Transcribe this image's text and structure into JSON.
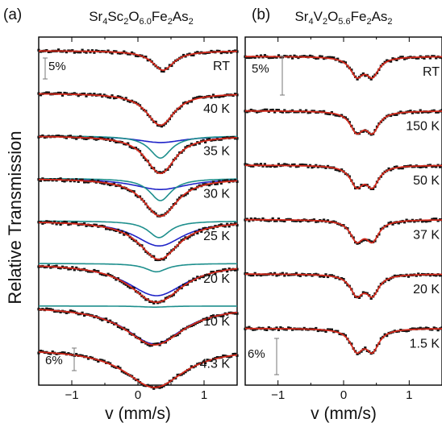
{
  "ylabel": "Relative Transmission",
  "colors": {
    "data": "#111111",
    "fit": "#d42a1c",
    "blue": "#1f23c8",
    "teal": "#1e8f8d"
  },
  "chart_data": [
    {
      "type": "line",
      "panel_label": "(a)",
      "title_parts": [
        "Sr",
        "4",
        "Sc",
        "2",
        "O",
        "6.0",
        "Fe",
        "2",
        "As",
        "2"
      ],
      "xlabel": "v (mm/s)",
      "xlim": [
        -1.5,
        1.5
      ],
      "xticks": [
        -1,
        0,
        1
      ],
      "scale_bars": [
        {
          "label": "5%",
          "position": "top-left"
        },
        {
          "label": "6%",
          "position": "bottom-left"
        }
      ],
      "spectra": [
        {
          "label": "RT",
          "center": 0.38,
          "depth": 0.035,
          "hwhm": 0.2,
          "split": 0,
          "components": []
        },
        {
          "label": "40 K",
          "center": 0.34,
          "depth": 0.06,
          "hwhm": 0.24,
          "split": 0.1,
          "components": []
        },
        {
          "label": "35 K",
          "center": 0.34,
          "depth": 0.07,
          "hwhm": 0.26,
          "split": 0.1,
          "components": [
            {
              "color": "blue",
              "depth": 0.012,
              "hwhm": 0.45
            },
            {
              "color": "teal",
              "depth": 0.04,
              "hwhm": 0.2
            }
          ]
        },
        {
          "label": "30 K",
          "center": 0.34,
          "depth": 0.07,
          "hwhm": 0.3,
          "split": 0.1,
          "components": [
            {
              "color": "blue",
              "depth": 0.02,
              "hwhm": 0.5
            },
            {
              "color": "teal",
              "depth": 0.04,
              "hwhm": 0.2
            }
          ]
        },
        {
          "label": "25 K",
          "center": 0.32,
          "depth": 0.07,
          "hwhm": 0.36,
          "split": 0.08,
          "components": [
            {
              "color": "teal",
              "depth": 0.03,
              "hwhm": 0.2
            },
            {
              "color": "blue",
              "depth": 0.045,
              "hwhm": 0.45
            }
          ]
        },
        {
          "label": "20 K",
          "center": 0.28,
          "depth": 0.07,
          "hwhm": 0.48,
          "split": 0.05,
          "components": [
            {
              "color": "teal",
              "depth": 0.015,
              "hwhm": 0.2
            },
            {
              "color": "blue",
              "depth": 0.058,
              "hwhm": 0.55
            }
          ]
        },
        {
          "label": "10 K",
          "center": 0.25,
          "depth": 0.07,
          "hwhm": 0.55,
          "split": 0.03,
          "components": [
            {
              "color": "teal",
              "depth": 0.002,
              "hwhm": 0.25
            },
            {
              "color": "blue",
              "depth": 0.068,
              "hwhm": 0.55
            }
          ]
        },
        {
          "label": "4.3 K",
          "center": 0.25,
          "depth": 0.07,
          "hwhm": 0.55,
          "split": 0.04,
          "components": []
        }
      ]
    },
    {
      "type": "line",
      "panel_label": "(b)",
      "title_parts": [
        "Sr",
        "4",
        "V",
        "2",
        "O",
        "5.6",
        "Fe",
        "2",
        "As",
        "2"
      ],
      "xlabel": "v (mm/s)",
      "xlim": [
        -1.5,
        1.5
      ],
      "xticks": [
        -1,
        0,
        1
      ],
      "scale_bars": [
        {
          "label": "5%",
          "position": "top-left"
        },
        {
          "label": "6%",
          "position": "bottom-left"
        }
      ],
      "spectra": [
        {
          "label": "RT",
          "center": 0.32,
          "depth": 0.07,
          "hwhm": 0.12,
          "split": 0.24,
          "components": []
        },
        {
          "label": "150 K",
          "center": 0.32,
          "depth": 0.075,
          "hwhm": 0.12,
          "split": 0.24,
          "components": []
        },
        {
          "label": "50 K",
          "center": 0.32,
          "depth": 0.075,
          "hwhm": 0.12,
          "split": 0.24,
          "components": []
        },
        {
          "label": "37 K",
          "center": 0.32,
          "depth": 0.075,
          "hwhm": 0.12,
          "split": 0.24,
          "components": []
        },
        {
          "label": "20 K",
          "center": 0.32,
          "depth": 0.075,
          "hwhm": 0.12,
          "split": 0.24,
          "components": []
        },
        {
          "label": "1.5 K",
          "center": 0.32,
          "depth": 0.08,
          "hwhm": 0.12,
          "split": 0.24,
          "components": []
        }
      ]
    }
  ]
}
